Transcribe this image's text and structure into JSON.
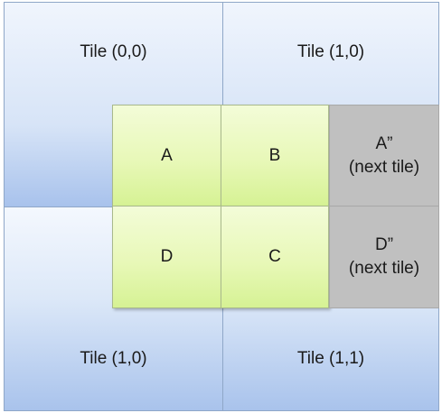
{
  "tiles": [
    {
      "label": "Tile (0,0)"
    },
    {
      "label": "Tile (1,0)"
    },
    {
      "label": "Tile (1,0)"
    },
    {
      "label": "Tile (1,1)"
    }
  ],
  "cells": {
    "a": {
      "label": "A"
    },
    "b": {
      "label": "B"
    },
    "c": {
      "label": "C"
    },
    "d": {
      "label": "D"
    },
    "a_next": {
      "label": "A”",
      "sublabel": "(next tile)"
    },
    "d_next": {
      "label": "D”",
      "sublabel": "(next tile)"
    }
  },
  "colors": {
    "tile_fill": "#d7e4f7",
    "cell_green": "#e8f8b8",
    "cell_gray": "#c0c0c0"
  }
}
